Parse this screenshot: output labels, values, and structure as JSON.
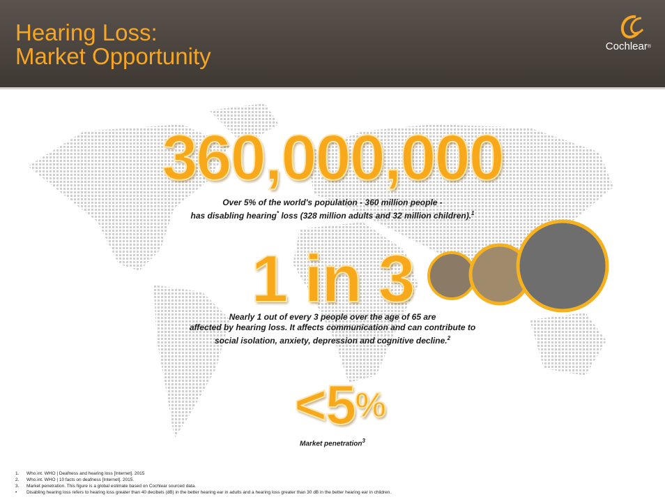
{
  "header": {
    "title_lines": [
      "Hearing Loss:",
      "Market Opportunity"
    ],
    "logo": "Cochlear",
    "logo_mark": "®"
  },
  "stats": [
    {
      "headline": "360,000,000",
      "lines": [
        [
          "Over 5% of the world's population - 360 million people -"
        ],
        [
          "has disabling hearing",
          "*",
          " loss (328 million adults and 32 million children).",
          "1"
        ]
      ]
    },
    {
      "headline": "1 in 3",
      "lines": [
        [
          "Nearly 1 out of every 3 people over the age of 65 are"
        ],
        [
          "affected by hearing loss. It affects communication and can contribute to"
        ],
        [
          "social isolation, anxiety, depression and cognitive decline.",
          "2"
        ]
      ]
    },
    {
      "headline": "<5",
      "headline_suffix": "%",
      "lines": [
        [
          "Market penetration",
          "3"
        ]
      ]
    }
  ],
  "footnotes": [
    {
      "marker": "1.",
      "text": "Who.int. WHO | Deafness and hearing loss [Internet]. 2015"
    },
    {
      "marker": "2.",
      "text": "Who.int. WHO | 10 facts on deafness [Internet]. 2015."
    },
    {
      "marker": "3.",
      "text": "Market penetration. This figure is a global estimate based on Cochlear sourced data."
    },
    {
      "marker": "•",
      "text": "Disabling hearing loss refers to hearing loss greater than 40 decibels (dB) in the better hearing ear in adults and a hearing loss greater than 30 dB in the better hearing ear in children."
    }
  ]
}
